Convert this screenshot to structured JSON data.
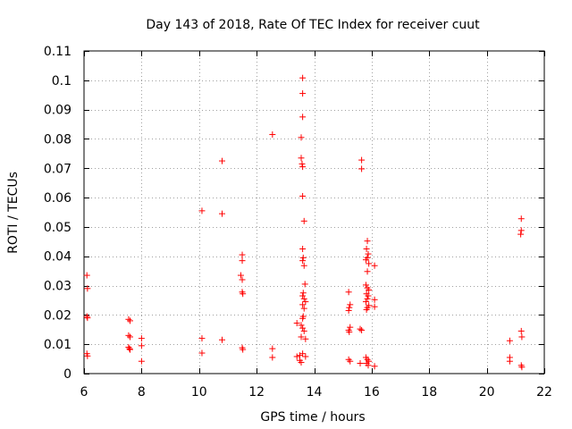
{
  "chart_data": {
    "type": "scatter",
    "title": "Day 143 of 2018, Rate Of TEC Index for receiver cuut",
    "xlabel": "GPS time / hours",
    "ylabel": "ROTI / TECUs",
    "xlim": [
      6,
      22
    ],
    "ylim": [
      0,
      0.11
    ],
    "xticks": [
      6,
      8,
      10,
      12,
      14,
      16,
      18,
      20,
      22
    ],
    "yticks": [
      0,
      0.01,
      0.02,
      0.03,
      0.04,
      0.05,
      0.06,
      0.07,
      0.08,
      0.09,
      0.1,
      0.11
    ],
    "xtick_labels": [
      "6",
      "8",
      "10",
      "12",
      "14",
      "16",
      "18",
      "20",
      "22"
    ],
    "ytick_labels": [
      "0",
      "0.01",
      "0.02",
      "0.03",
      "0.04",
      "0.05",
      "0.06",
      "0.07",
      "0.08",
      "0.09",
      "0.1",
      "0.11"
    ],
    "grid": true,
    "marker": "+",
    "color": "#ff0000",
    "points": [
      [
        6.1,
        0.0335
      ],
      [
        6.12,
        0.029
      ],
      [
        6.1,
        0.0195
      ],
      [
        6.12,
        0.019
      ],
      [
        6.1,
        0.0068
      ],
      [
        6.12,
        0.006
      ],
      [
        7.55,
        0.0185
      ],
      [
        7.6,
        0.018
      ],
      [
        7.55,
        0.013
      ],
      [
        7.6,
        0.0125
      ],
      [
        7.55,
        0.009
      ],
      [
        7.58,
        0.0085
      ],
      [
        7.6,
        0.0082
      ],
      [
        8.0,
        0.012
      ],
      [
        8.0,
        0.0095
      ],
      [
        8.0,
        0.0042
      ],
      [
        10.1,
        0.0555
      ],
      [
        10.1,
        0.012
      ],
      [
        10.1,
        0.007
      ],
      [
        10.8,
        0.0725
      ],
      [
        10.8,
        0.0545
      ],
      [
        10.8,
        0.0115
      ],
      [
        11.5,
        0.0405
      ],
      [
        11.5,
        0.0385
      ],
      [
        11.45,
        0.0335
      ],
      [
        11.5,
        0.032
      ],
      [
        11.5,
        0.0278
      ],
      [
        11.52,
        0.0272
      ],
      [
        11.5,
        0.0088
      ],
      [
        11.52,
        0.0082
      ],
      [
        12.55,
        0.0815
      ],
      [
        12.55,
        0.0085
      ],
      [
        12.55,
        0.0055
      ],
      [
        13.6,
        0.1008
      ],
      [
        13.6,
        0.0955
      ],
      [
        13.6,
        0.0875
      ],
      [
        13.55,
        0.0805
      ],
      [
        13.55,
        0.0735
      ],
      [
        13.58,
        0.0715
      ],
      [
        13.6,
        0.0705
      ],
      [
        13.6,
        0.0605
      ],
      [
        13.65,
        0.052
      ],
      [
        13.6,
        0.0425
      ],
      [
        13.62,
        0.0395
      ],
      [
        13.6,
        0.0385
      ],
      [
        13.65,
        0.0368
      ],
      [
        13.68,
        0.0305
      ],
      [
        13.62,
        0.0275
      ],
      [
        13.6,
        0.0265
      ],
      [
        13.65,
        0.0255
      ],
      [
        13.7,
        0.0245
      ],
      [
        13.6,
        0.0235
      ],
      [
        13.65,
        0.0222
      ],
      [
        13.62,
        0.0195
      ],
      [
        13.6,
        0.0188
      ],
      [
        13.4,
        0.0172
      ],
      [
        13.55,
        0.0165
      ],
      [
        13.6,
        0.0155
      ],
      [
        13.65,
        0.0145
      ],
      [
        13.55,
        0.0125
      ],
      [
        13.7,
        0.0118
      ],
      [
        13.4,
        0.0058
      ],
      [
        13.5,
        0.0062
      ],
      [
        13.6,
        0.0068
      ],
      [
        13.7,
        0.0058
      ],
      [
        13.5,
        0.0045
      ],
      [
        13.55,
        0.0038
      ],
      [
        15.2,
        0.0278
      ],
      [
        15.25,
        0.0235
      ],
      [
        15.22,
        0.0225
      ],
      [
        15.2,
        0.0215
      ],
      [
        15.25,
        0.0158
      ],
      [
        15.2,
        0.0148
      ],
      [
        15.22,
        0.0142
      ],
      [
        15.2,
        0.0048
      ],
      [
        15.25,
        0.0042
      ],
      [
        15.65,
        0.0728
      ],
      [
        15.65,
        0.0698
      ],
      [
        15.6,
        0.0152
      ],
      [
        15.65,
        0.0148
      ],
      [
        15.6,
        0.0035
      ],
      [
        15.85,
        0.0452
      ],
      [
        15.82,
        0.0425
      ],
      [
        15.88,
        0.0408
      ],
      [
        15.85,
        0.0395
      ],
      [
        15.8,
        0.0388
      ],
      [
        15.9,
        0.0375
      ],
      [
        15.85,
        0.0348
      ],
      [
        15.8,
        0.0302
      ],
      [
        15.85,
        0.0292
      ],
      [
        15.9,
        0.0285
      ],
      [
        15.82,
        0.0272
      ],
      [
        15.88,
        0.0265
      ],
      [
        15.85,
        0.0255
      ],
      [
        15.8,
        0.0245
      ],
      [
        15.9,
        0.0232
      ],
      [
        15.85,
        0.0225
      ],
      [
        15.82,
        0.0218
      ],
      [
        15.8,
        0.0055
      ],
      [
        15.85,
        0.0048
      ],
      [
        15.9,
        0.0042
      ],
      [
        15.82,
        0.0035
      ],
      [
        15.88,
        0.0028
      ],
      [
        16.1,
        0.0368
      ],
      [
        16.1,
        0.0252
      ],
      [
        16.1,
        0.0228
      ],
      [
        16.1,
        0.0025
      ],
      [
        20.8,
        0.0112
      ],
      [
        20.8,
        0.0055
      ],
      [
        20.8,
        0.0042
      ],
      [
        21.2,
        0.0528
      ],
      [
        21.2,
        0.0488
      ],
      [
        21.18,
        0.0475
      ],
      [
        21.2,
        0.0145
      ],
      [
        21.22,
        0.0125
      ],
      [
        21.2,
        0.0028
      ],
      [
        21.22,
        0.0022
      ]
    ]
  }
}
